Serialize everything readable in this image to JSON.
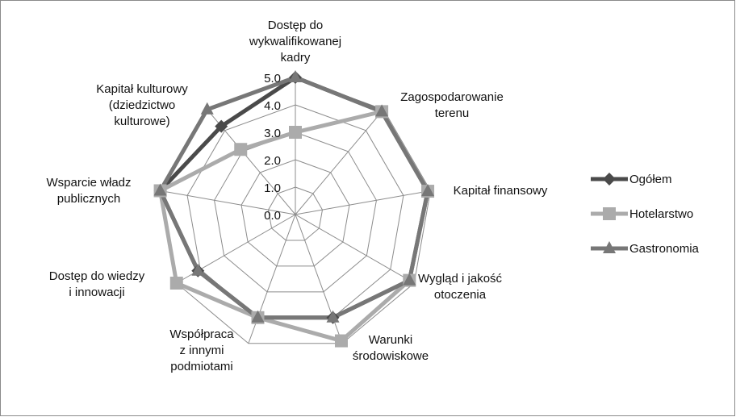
{
  "chart_data": {
    "type": "radar",
    "categories": [
      "Dostęp do\nwykwalifikowanej\nkadry",
      "Zagospodarowanie\nterenu",
      "Kapitał finansowy",
      "Wygląd i jakość\notoczenia",
      "Warunki\nśrodowiskowe",
      "Współpraca\nz innymi\npodmiotami",
      "Dostęp do wiedzy\ni innowacji",
      "Wsparcie władz\npublicznych",
      "Kapitał kulturowy\n(dziedzictwo\nkulturowe)"
    ],
    "series": [
      {
        "name": "Ogółem",
        "color": "#4a4a4a",
        "marker": "diamond",
        "values": [
          5.0,
          4.9,
          4.9,
          4.8,
          4.0,
          4.0,
          4.1,
          5.0,
          4.2
        ]
      },
      {
        "name": "Hotelarstwo",
        "color": "#ababab",
        "marker": "square",
        "values": [
          3.0,
          4.9,
          4.9,
          4.8,
          4.9,
          4.0,
          5.0,
          5.0,
          3.1
        ]
      },
      {
        "name": "Gastronomia",
        "color": "#777777",
        "marker": "triangle",
        "values": [
          5.0,
          4.9,
          4.9,
          4.8,
          4.0,
          4.0,
          4.1,
          5.0,
          5.0
        ]
      }
    ],
    "rlim": [
      0,
      5
    ],
    "rticks": [
      {
        "value": 0,
        "label": "0.0"
      },
      {
        "value": 1,
        "label": "1.0"
      },
      {
        "value": 2,
        "label": "2.0"
      },
      {
        "value": 3,
        "label": "3.0"
      },
      {
        "value": 4,
        "label": "4.0"
      },
      {
        "value": 5,
        "label": "5.0"
      }
    ],
    "legend": "right"
  }
}
